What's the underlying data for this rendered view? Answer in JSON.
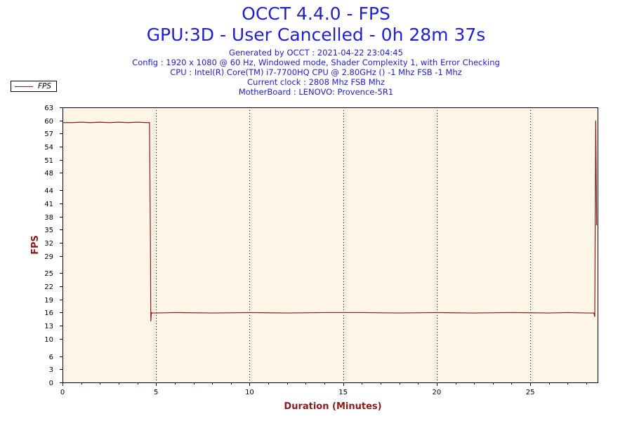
{
  "header": {
    "title": "OCCT 4.4.0 - FPS",
    "subtitle": "GPU:3D - User Cancelled - 0h 28m 37s",
    "info_lines": [
      "Generated by OCCT : 2021-04-22 23:04:45",
      "Config : 1920 x 1080 @ 60 Hz, Windowed mode, Shader Complexity 1, with Error Checking",
      "CPU : Intel(R) Core(TM) i7-7700HQ CPU @ 2.80GHz () -1 Mhz FSB -1 Mhz",
      "Current clock : 2808 Mhz FSB  Mhz",
      "MotherBoard : LENOVO: Provence-5R1"
    ]
  },
  "colors": {
    "title": "#1f1fd0",
    "series": "#8b1a1a",
    "plot_background": "#fdf5e6",
    "grid": "#000000"
  },
  "chart_data": {
    "type": "line",
    "xlabel": "Duration (Minutes)",
    "ylabel": "FPS",
    "xlim": [
      0,
      28.6
    ],
    "ylim": [
      0,
      63
    ],
    "x_ticks": [
      0,
      5,
      10,
      15,
      20,
      25
    ],
    "y_ticks": [
      0,
      3,
      6,
      10,
      13,
      16,
      19,
      22,
      25,
      29,
      32,
      35,
      38,
      41,
      44,
      48,
      51,
      54,
      57,
      60,
      63
    ],
    "grid": "vertical dotted",
    "legend": {
      "position": "top-left",
      "entries": [
        "FPS"
      ]
    },
    "series": [
      {
        "name": "FPS",
        "x": [
          0.05,
          0.5,
          1.0,
          1.5,
          2.0,
          2.5,
          3.0,
          3.5,
          4.0,
          4.5,
          4.65,
          4.7,
          4.72,
          4.75,
          4.8,
          5.0,
          6.0,
          8.0,
          10.0,
          12.0,
          14.0,
          16.0,
          18.0,
          20.0,
          22.0,
          24.0,
          26.0,
          27.0,
          28.0,
          28.4,
          28.45,
          28.5,
          28.55
        ],
        "y": [
          59.5,
          59.5,
          59.6,
          59.5,
          59.6,
          59.5,
          59.6,
          59.5,
          59.6,
          59.5,
          59.5,
          32,
          14,
          16,
          15.9,
          15.9,
          16.0,
          15.9,
          16.0,
          15.9,
          16.0,
          16.0,
          15.9,
          16.0,
          15.9,
          16.0,
          15.9,
          16.0,
          15.9,
          15.9,
          15,
          60,
          36
        ]
      }
    ]
  }
}
